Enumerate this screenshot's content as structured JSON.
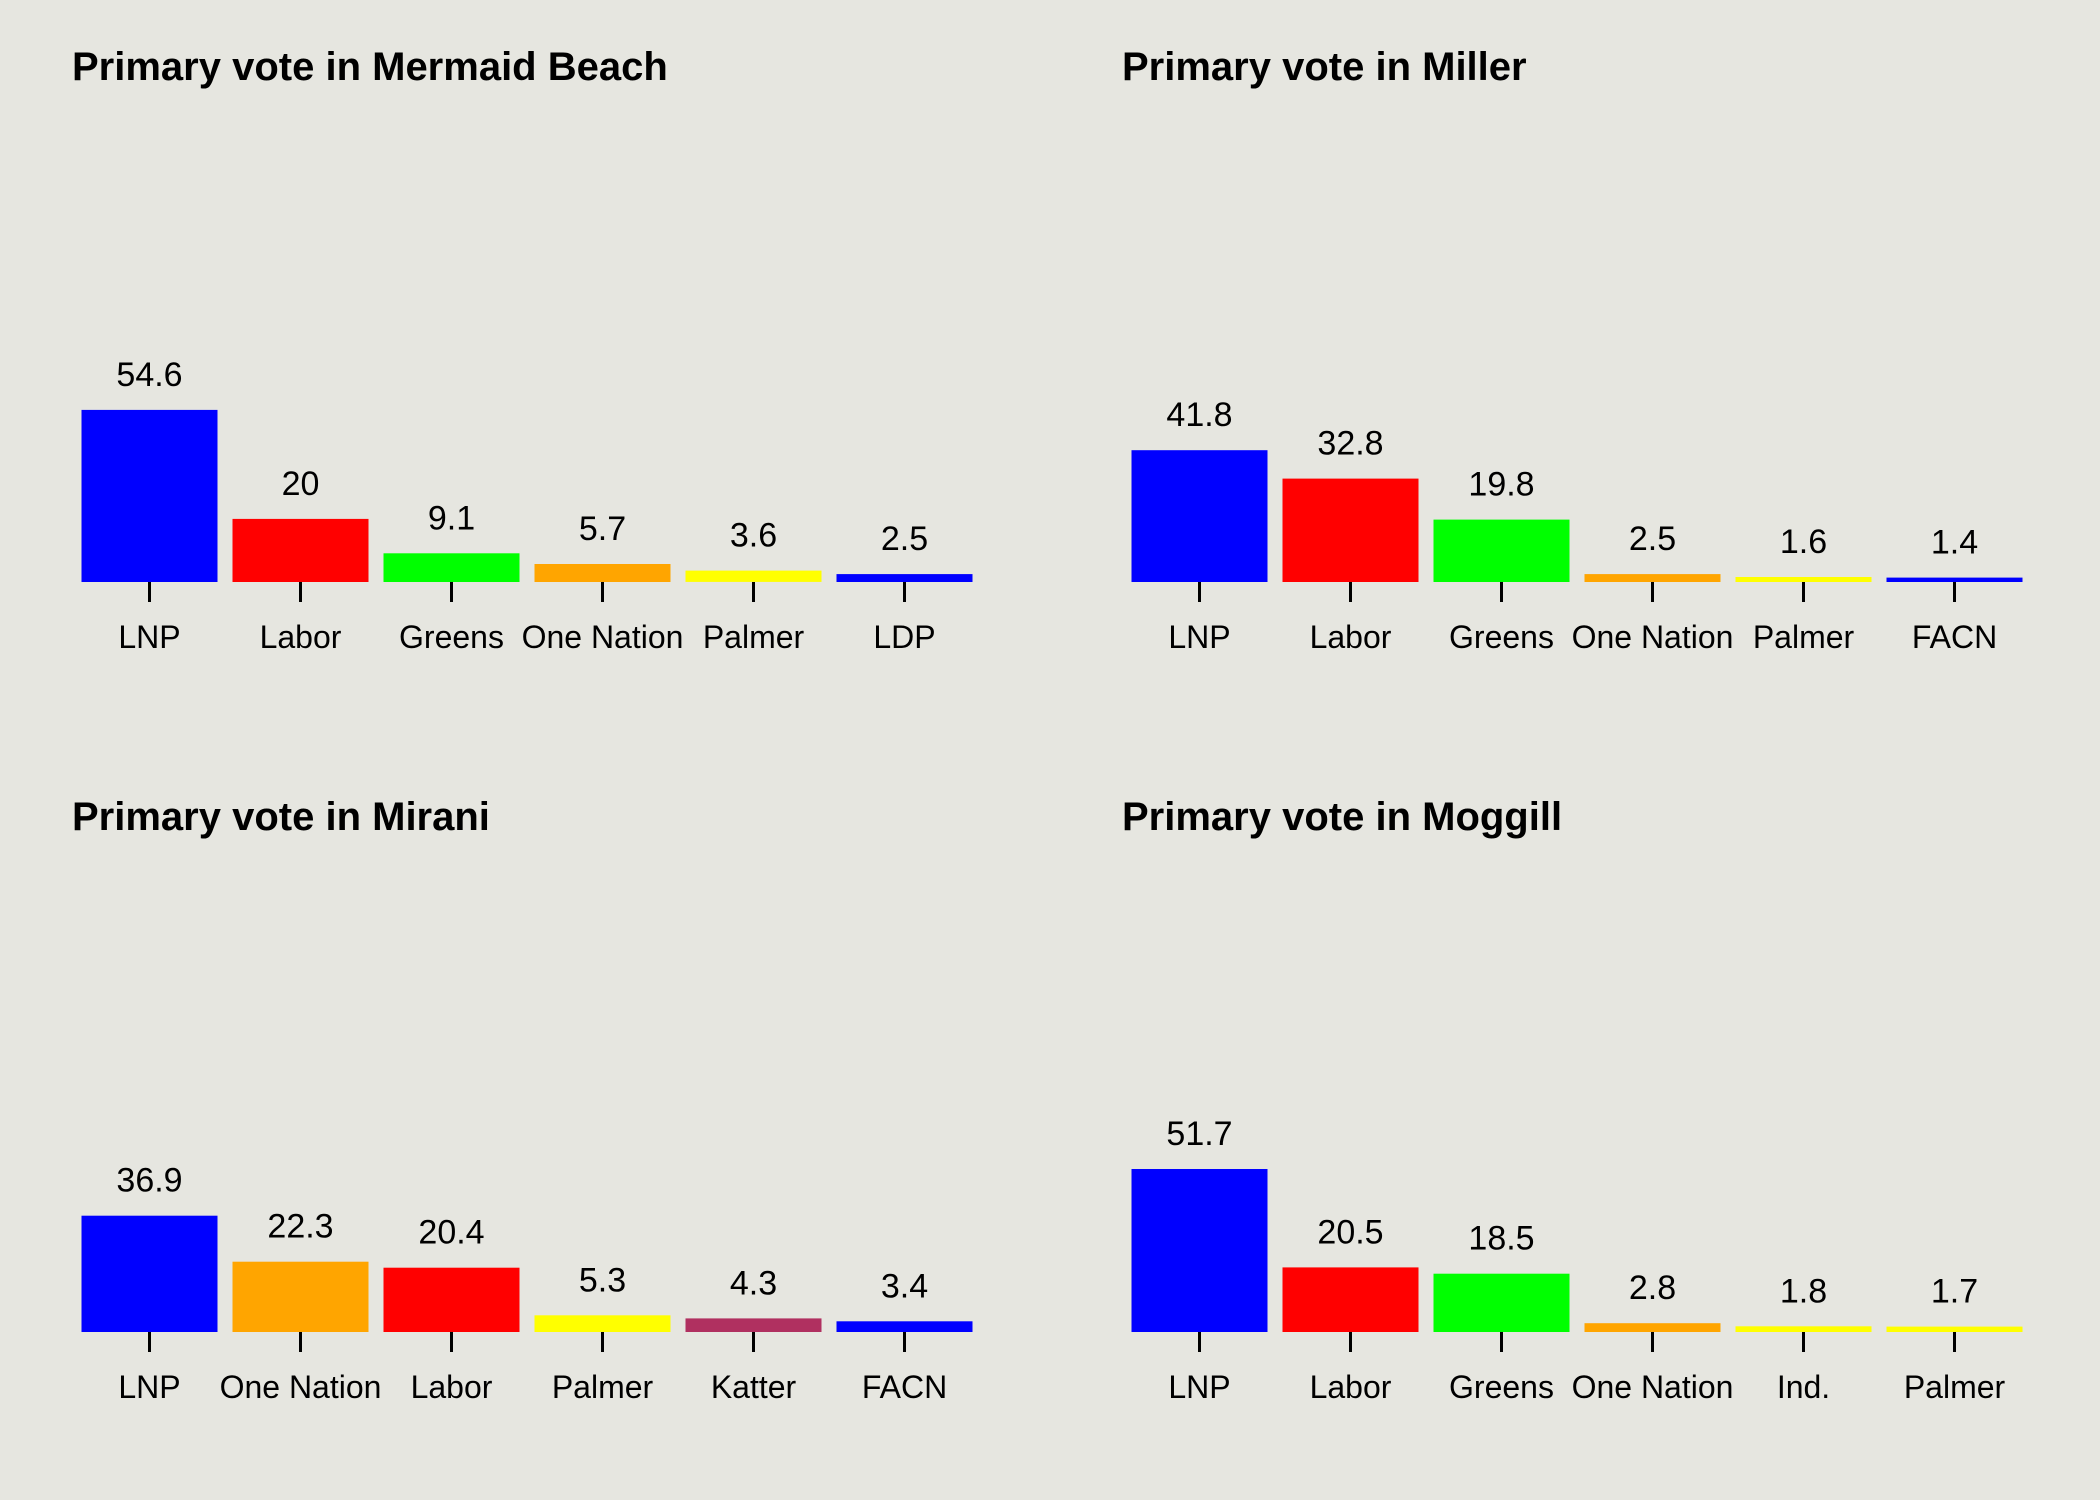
{
  "chart_data": [
    {
      "type": "bar",
      "title": "Primary vote in Mermaid Beach",
      "categories": [
        "LNP",
        "Labor",
        "Greens",
        "One Nation",
        "Palmer",
        "LDP"
      ],
      "values": [
        54.6,
        20,
        9.1,
        5.7,
        3.6,
        2.5
      ],
      "value_labels": [
        "54.6",
        "20",
        "9.1",
        "5.7",
        "3.6",
        "2.5"
      ],
      "colors": [
        "#0000ff",
        "#ff0000",
        "#00ff00",
        "#ffa500",
        "#ffff00",
        "#0000ff"
      ],
      "xlabel": "",
      "ylabel": "",
      "ylim": [
        0,
        80
      ],
      "grid": false
    },
    {
      "type": "bar",
      "title": "Primary vote in Miller",
      "categories": [
        "LNP",
        "Labor",
        "Greens",
        "One Nation",
        "Palmer",
        "FACN"
      ],
      "values": [
        41.8,
        32.8,
        19.8,
        2.5,
        1.6,
        1.4
      ],
      "value_labels": [
        "41.8",
        "32.8",
        "19.8",
        "2.5",
        "1.6",
        "1.4"
      ],
      "colors": [
        "#0000ff",
        "#ff0000",
        "#00ff00",
        "#ffa500",
        "#ffff00",
        "#0000ff"
      ],
      "xlabel": "",
      "ylabel": "",
      "ylim": [
        0,
        80
      ],
      "grid": false
    },
    {
      "type": "bar",
      "title": "Primary vote in Mirani",
      "categories": [
        "LNP",
        "One Nation",
        "Labor",
        "Palmer",
        "Katter",
        "FACN"
      ],
      "values": [
        36.9,
        22.3,
        20.4,
        5.3,
        4.3,
        3.4
      ],
      "value_labels": [
        "36.9",
        "22.3",
        "20.4",
        "5.3",
        "4.3",
        "3.4"
      ],
      "colors": [
        "#0000ff",
        "#ffa500",
        "#ff0000",
        "#ffff00",
        "#b03060",
        "#0000ff"
      ],
      "xlabel": "",
      "ylabel": "",
      "ylim": [
        0,
        80
      ],
      "grid": false
    },
    {
      "type": "bar",
      "title": "Primary vote in Moggill",
      "categories": [
        "LNP",
        "Labor",
        "Greens",
        "One Nation",
        "Ind.",
        "Palmer"
      ],
      "values": [
        51.7,
        20.5,
        18.5,
        2.8,
        1.8,
        1.7
      ],
      "value_labels": [
        "51.7",
        "20.5",
        "18.5",
        "2.8",
        "1.8",
        "1.7"
      ],
      "colors": [
        "#0000ff",
        "#ff0000",
        "#00ff00",
        "#ffa500",
        "#ffff00",
        "#ffff00"
      ],
      "xlabel": "",
      "ylabel": "",
      "ylim": [
        0,
        80
      ],
      "grid": false
    }
  ]
}
